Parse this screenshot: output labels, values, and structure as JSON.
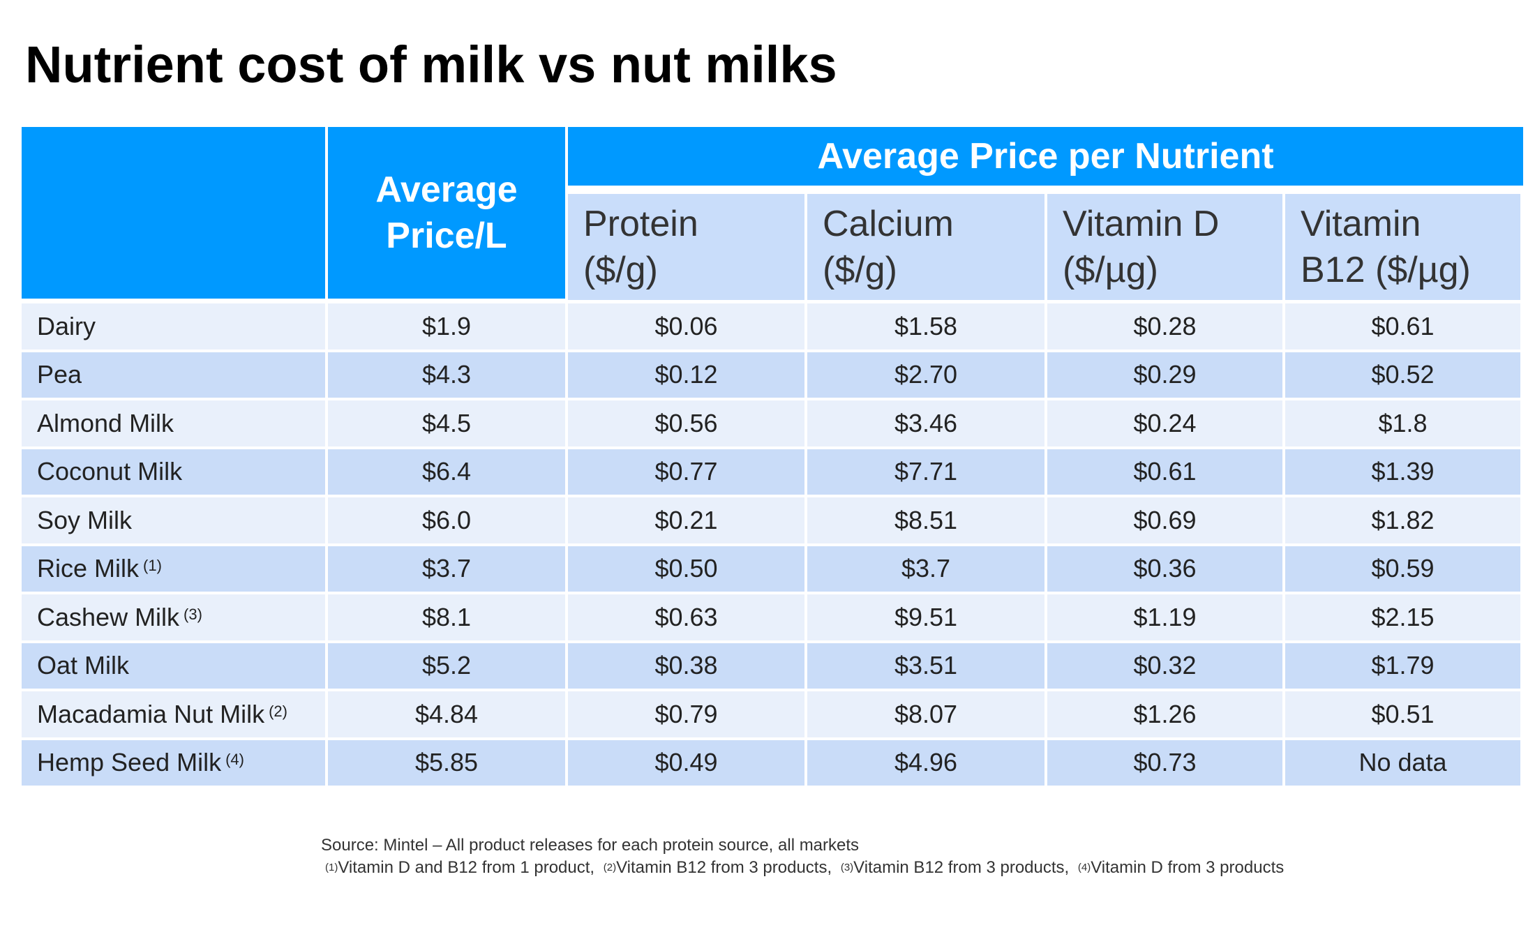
{
  "title": "Nutrient cost of milk vs nut milks",
  "header": {
    "avg_price": "Average Price/L",
    "avg_price_line1": "Average",
    "avg_price_line2": "Price/L",
    "group": "Average Price per Nutrient",
    "columns": [
      {
        "l1": "Protein",
        "l2": "($/g)"
      },
      {
        "l1": "Calcium",
        "l2": "($/g)"
      },
      {
        "l1": "Vitamin D",
        "l2": "($/µg)"
      },
      {
        "l1": "Vitamin",
        "l2": "B12 ($/µg)"
      }
    ]
  },
  "colors": {
    "header_blue": "#0099ff",
    "subheader": "#c9ddfa",
    "row_light": "#e9f0fb",
    "row_dark": "#c9dcf8"
  },
  "rows": [
    {
      "name": "Dairy",
      "note": "",
      "values": [
        "$1.9",
        "$0.06",
        "$1.58",
        "$0.28",
        "$0.61"
      ]
    },
    {
      "name": "Pea",
      "note": "",
      "values": [
        "$4.3",
        "$0.12",
        "$2.70",
        "$0.29",
        "$0.52"
      ]
    },
    {
      "name": "Almond Milk",
      "note": "",
      "values": [
        "$4.5",
        "$0.56",
        "$3.46",
        "$0.24",
        "$1.8"
      ]
    },
    {
      "name": "Coconut Milk",
      "note": "",
      "values": [
        "$6.4",
        "$0.77",
        "$7.71",
        "$0.61",
        "$1.39"
      ]
    },
    {
      "name": "Soy Milk",
      "note": "",
      "values": [
        "$6.0",
        "$0.21",
        "$8.51",
        "$0.69",
        "$1.82"
      ]
    },
    {
      "name": "Rice Milk",
      "note": "(1)",
      "values": [
        "$3.7",
        "$0.50",
        "$3.7",
        "$0.36",
        "$0.59"
      ]
    },
    {
      "name": "Cashew Milk",
      "note": "(3)",
      "values": [
        "$8.1",
        "$0.63",
        "$9.51",
        "$1.19",
        "$2.15"
      ]
    },
    {
      "name": "Oat Milk",
      "note": "",
      "values": [
        "$5.2",
        "$0.38",
        "$3.51",
        "$0.32",
        "$1.79"
      ]
    },
    {
      "name": "Macadamia Nut Milk",
      "note": "(2)",
      "values": [
        "$4.84",
        "$0.79",
        "$8.07",
        "$1.26",
        "$0.51"
      ]
    },
    {
      "name": "Hemp Seed Milk",
      "note": "(4)",
      "values": [
        "$5.85",
        "$0.49",
        "$4.96",
        "$0.73",
        "No data"
      ]
    }
  ],
  "footnotes": {
    "source": "Source: Mintel – All product releases for each protein source, all markets",
    "notes": [
      {
        "mark": "(1)",
        "text": "Vitamin D and B12 from 1 product,"
      },
      {
        "mark": "(2)",
        "text": "Vitamin B12 from 3 products,"
      },
      {
        "mark": "(3)",
        "text": "Vitamin B12 from 3 products,"
      },
      {
        "mark": "(4)",
        "text": "Vitamin D from 3 products"
      }
    ]
  }
}
